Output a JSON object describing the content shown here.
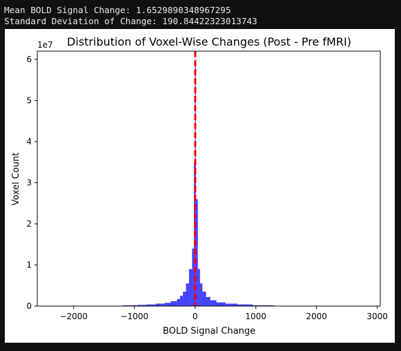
{
  "console": {
    "line1": "Mean BOLD Signal Change: 1.6529890348967295",
    "line2": "Standard Deviation of Change: 190.84422323013743"
  },
  "chart_data": {
    "type": "bar",
    "title": "Distribution of Voxel-Wise Changes (Post - Pre fMRI)",
    "xlabel": "BOLD Signal Change",
    "ylabel": "Voxel Count",
    "y_offset_label": "1e7",
    "xlim": [
      -2600,
      3050
    ],
    "ylim": [
      0,
      6.2
    ],
    "y_scale_factor": 10000000,
    "xticks": [
      -2000,
      -1000,
      0,
      1000,
      2000,
      3000
    ],
    "xtick_labels": [
      "−2000",
      "−1000",
      "0",
      "1000",
      "2000",
      "3000"
    ],
    "yticks": [
      0,
      1,
      2,
      3,
      4,
      5,
      6
    ],
    "ytick_labels": [
      "0",
      "1",
      "2",
      "3",
      "4",
      "5",
      "6"
    ],
    "bar_color": "#3333ff",
    "bins": [
      {
        "x0": -1200,
        "x1": -950,
        "value": 0.02
      },
      {
        "x0": -950,
        "x1": -800,
        "value": 0.03
      },
      {
        "x0": -800,
        "x1": -650,
        "value": 0.04
      },
      {
        "x0": -650,
        "x1": -500,
        "value": 0.06
      },
      {
        "x0": -500,
        "x1": -400,
        "value": 0.08
      },
      {
        "x0": -400,
        "x1": -300,
        "value": 0.12
      },
      {
        "x0": -300,
        "x1": -250,
        "value": 0.17
      },
      {
        "x0": -250,
        "x1": -200,
        "value": 0.25
      },
      {
        "x0": -200,
        "x1": -150,
        "value": 0.35
      },
      {
        "x0": -150,
        "x1": -100,
        "value": 0.55
      },
      {
        "x0": -100,
        "x1": -50,
        "value": 0.9
      },
      {
        "x0": -50,
        "x1": -20,
        "value": 1.4
      },
      {
        "x0": -20,
        "x1": -3,
        "value": 3.5
      },
      {
        "x0": -3,
        "x1": 12,
        "value": 5.85
      },
      {
        "x0": 12,
        "x1": 45,
        "value": 2.6
      },
      {
        "x0": 45,
        "x1": 80,
        "value": 0.9
      },
      {
        "x0": 80,
        "x1": 120,
        "value": 0.55
      },
      {
        "x0": 120,
        "x1": 180,
        "value": 0.35
      },
      {
        "x0": 180,
        "x1": 250,
        "value": 0.22
      },
      {
        "x0": 250,
        "x1": 350,
        "value": 0.14
      },
      {
        "x0": 350,
        "x1": 500,
        "value": 0.09
      },
      {
        "x0": 500,
        "x1": 700,
        "value": 0.06
      },
      {
        "x0": 700,
        "x1": 950,
        "value": 0.04
      },
      {
        "x0": 950,
        "x1": 1300,
        "value": 0.02
      }
    ],
    "mean_line": {
      "x": 1.65,
      "color": "#ff0000",
      "style": "dashed"
    }
  }
}
